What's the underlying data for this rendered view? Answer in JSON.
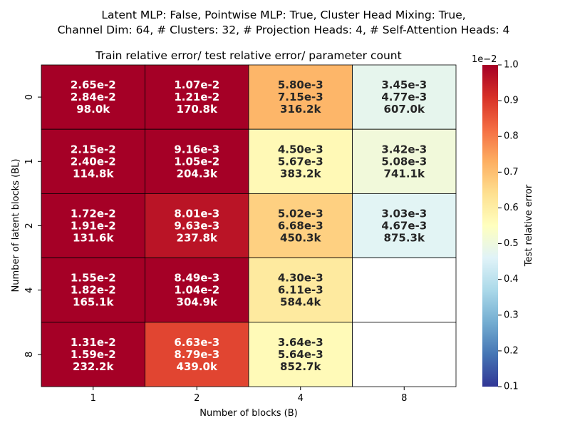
{
  "chart_data": {
    "type": "heatmap",
    "suptitle_lines": [
      "Latent MLP: False, Pointwise MLP: True, Cluster Head Mixing: True,",
      "Channel Dim: 64, # Clusters: 32, # Projection Heads: 4, # Self-Attention Heads: 4"
    ],
    "title": "Train relative error/ test relative error/ parameter count",
    "xlabel": "Number of blocks (B)",
    "ylabel": "Number of latent blocks (BL)",
    "x_categories": [
      "1",
      "2",
      "4",
      "8"
    ],
    "y_categories": [
      "0",
      "1",
      "2",
      "4",
      "8"
    ],
    "colorbar": {
      "label": "Test relative error",
      "multiplier_label": "1e−2",
      "min": 0.1,
      "max": 1.0,
      "ticks": [
        "0.1",
        "0.2",
        "0.3",
        "0.4",
        "0.5",
        "0.6",
        "0.7",
        "0.8",
        "0.9",
        "1.0"
      ],
      "colormap": "RdYlBu_r",
      "stops": [
        "#313695",
        "#4575b4",
        "#74add1",
        "#abd9e9",
        "#e0f3f8",
        "#ffffbf",
        "#fee090",
        "#fdae61",
        "#f46d43",
        "#d73027",
        "#a50026"
      ]
    },
    "cells": [
      [
        {
          "train": "2.65e-2",
          "test": "2.84e-2",
          "params": "98.0k",
          "test_value": 2.84
        },
        {
          "train": "1.07e-2",
          "test": "1.21e-2",
          "params": "170.8k",
          "test_value": 1.21
        },
        {
          "train": "5.80e-3",
          "test": "7.15e-3",
          "params": "316.2k",
          "test_value": 0.715
        },
        {
          "train": "3.45e-3",
          "test": "4.77e-3",
          "params": "607.0k",
          "test_value": 0.477
        }
      ],
      [
        {
          "train": "2.15e-2",
          "test": "2.40e-2",
          "params": "114.8k",
          "test_value": 2.4
        },
        {
          "train": "9.16e-3",
          "test": "1.05e-2",
          "params": "204.3k",
          "test_value": 1.05
        },
        {
          "train": "4.50e-3",
          "test": "5.67e-3",
          "params": "383.2k",
          "test_value": 0.567
        },
        {
          "train": "3.42e-3",
          "test": "5.08e-3",
          "params": "741.1k",
          "test_value": 0.508
        }
      ],
      [
        {
          "train": "1.72e-2",
          "test": "1.91e-2",
          "params": "131.6k",
          "test_value": 1.91
        },
        {
          "train": "8.01e-3",
          "test": "9.63e-3",
          "params": "237.8k",
          "test_value": 0.963
        },
        {
          "train": "5.02e-3",
          "test": "6.68e-3",
          "params": "450.3k",
          "test_value": 0.668
        },
        {
          "train": "3.03e-3",
          "test": "4.67e-3",
          "params": "875.3k",
          "test_value": 0.467
        }
      ],
      [
        {
          "train": "1.55e-2",
          "test": "1.82e-2",
          "params": "165.1k",
          "test_value": 1.82
        },
        {
          "train": "8.49e-3",
          "test": "1.04e-2",
          "params": "304.9k",
          "test_value": 1.04
        },
        {
          "train": "4.30e-3",
          "test": "6.11e-3",
          "params": "584.4k",
          "test_value": 0.611
        },
        null
      ],
      [
        {
          "train": "1.31e-2",
          "test": "1.59e-2",
          "params": "232.2k",
          "test_value": 1.59
        },
        {
          "train": "6.63e-3",
          "test": "8.79e-3",
          "params": "439.0k",
          "test_value": 0.879
        },
        {
          "train": "3.64e-3",
          "test": "5.64e-3",
          "params": "852.7k",
          "test_value": 0.564
        },
        null
      ]
    ]
  }
}
